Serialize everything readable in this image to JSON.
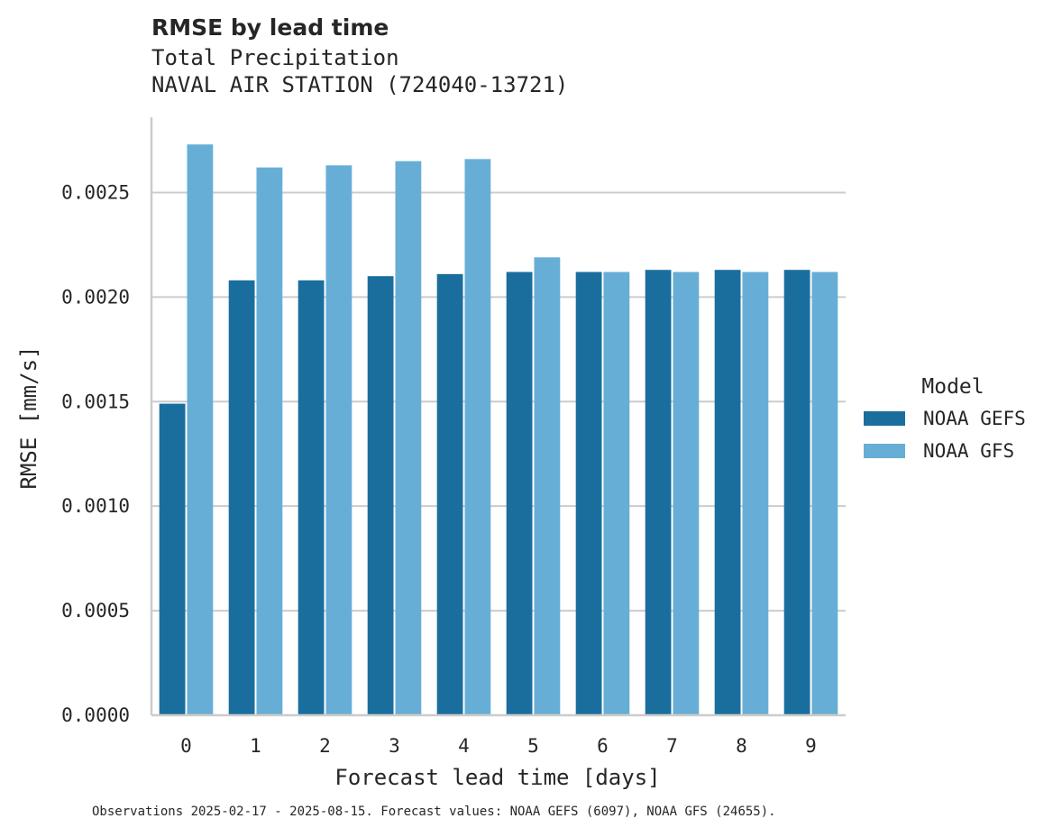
{
  "chart_data": {
    "type": "bar",
    "title": "RMSE by lead time",
    "subtitle": [
      "Total Precipitation",
      "NAVAL AIR STATION (724040-13721)"
    ],
    "xlabel": "Forecast lead time [days]",
    "ylabel": "RMSE [mm/s]",
    "categories": [
      "0",
      "1",
      "2",
      "3",
      "4",
      "5",
      "6",
      "7",
      "8",
      "9"
    ],
    "ylim": [
      0,
      0.00286
    ],
    "yticks": [
      "0.0000",
      "0.0005",
      "0.0010",
      "0.0015",
      "0.0020",
      "0.0025"
    ],
    "ytick_values": [
      0,
      0.0005,
      0.001,
      0.0015,
      0.002,
      0.0025
    ],
    "grid": "horizontal",
    "legend": {
      "title": "Model",
      "placement": "outside-right"
    },
    "series": [
      {
        "name": "NOAA GEFS",
        "color": "#1a6e9e",
        "values": [
          0.00149,
          0.00208,
          0.00208,
          0.0021,
          0.00211,
          0.00212,
          0.00212,
          0.00213,
          0.00213,
          0.00213
        ]
      },
      {
        "name": "NOAA GFS",
        "color": "#67aed6",
        "values": [
          0.00273,
          0.00262,
          0.00263,
          0.00265,
          0.00266,
          0.00219,
          0.00212,
          0.00212,
          0.00212,
          0.00212
        ]
      }
    ],
    "footnote": "Observations 2025-02-17 - 2025-08-15. Forecast values: NOAA GEFS (6097), NOAA GFS (24655)."
  }
}
